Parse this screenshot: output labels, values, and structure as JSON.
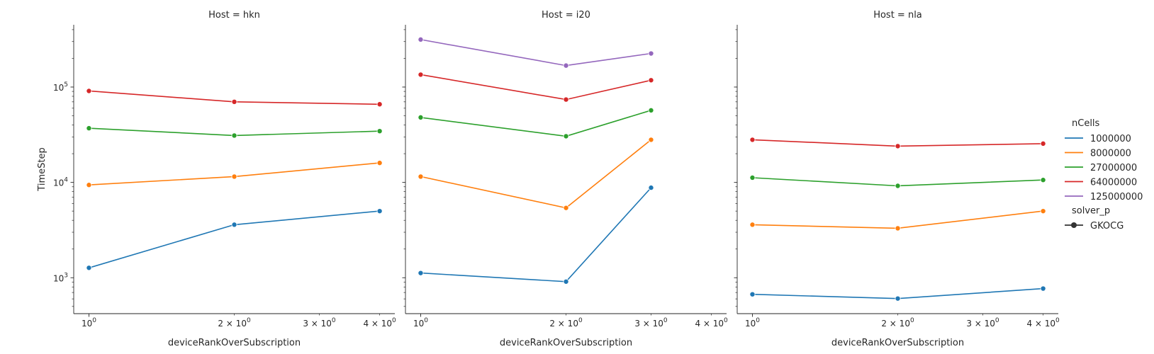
{
  "chart_data": {
    "type": "line",
    "ylabel": "TimeStep",
    "xlabel": "deviceRankOverSubscription",
    "xscale": "log",
    "yscale": "log",
    "xlim": [
      0.93,
      4.3
    ],
    "ylim": [
      420,
      450000
    ],
    "x_ticks": [
      {
        "value": 1,
        "base": "10",
        "exp": "0"
      },
      {
        "value": 2,
        "base": "2 × 10",
        "exp": "0"
      },
      {
        "value": 3,
        "base": "3 × 10",
        "exp": "0"
      },
      {
        "value": 4,
        "base": "4 × 10",
        "exp": "0"
      }
    ],
    "y_ticks": [
      {
        "value": 1000,
        "base": "10",
        "exp": "3"
      },
      {
        "value": 10000,
        "base": "10",
        "exp": "4"
      },
      {
        "value": 100000,
        "base": "10",
        "exp": "5"
      }
    ],
    "legend": {
      "placement": "right",
      "hue_title": "nCells",
      "style_title": "solver_p",
      "style_entries": [
        "GKOCG"
      ]
    },
    "colors": {
      "1000000": "#1f77b4",
      "8000000": "#ff7f0e",
      "27000000": "#2ca02c",
      "64000000": "#d62728",
      "125000000": "#9467bd"
    },
    "series_names": [
      "1000000",
      "8000000",
      "27000000",
      "64000000",
      "125000000"
    ],
    "panels": [
      {
        "title": "Host = hkn",
        "series": [
          {
            "name": "1000000",
            "x": [
              1,
              2,
              4
            ],
            "y": [
              1270,
              3600,
              5000
            ]
          },
          {
            "name": "8000000",
            "x": [
              1,
              2,
              4
            ],
            "y": [
              9400,
              11500,
              16000
            ]
          },
          {
            "name": "27000000",
            "x": [
              1,
              2,
              4
            ],
            "y": [
              37000,
              31000,
              34500
            ]
          },
          {
            "name": "64000000",
            "x": [
              1,
              2,
              4
            ],
            "y": [
              91000,
              70000,
              66000
            ]
          }
        ]
      },
      {
        "title": "Host = i20",
        "series": [
          {
            "name": "1000000",
            "x": [
              1,
              2,
              3
            ],
            "y": [
              1120,
              910,
              8800
            ]
          },
          {
            "name": "8000000",
            "x": [
              1,
              2,
              3
            ],
            "y": [
              11500,
              5400,
              28000
            ]
          },
          {
            "name": "27000000",
            "x": [
              1,
              2,
              3
            ],
            "y": [
              48000,
              30500,
              57000
            ]
          },
          {
            "name": "64000000",
            "x": [
              1,
              2,
              3
            ],
            "y": [
              135000,
              74000,
              118000
            ]
          },
          {
            "name": "125000000",
            "x": [
              1,
              2,
              3
            ],
            "y": [
              315000,
              168000,
              225000
            ]
          }
        ]
      },
      {
        "title": "Host = nla",
        "series": [
          {
            "name": "1000000",
            "x": [
              1,
              2,
              4
            ],
            "y": [
              670,
              605,
              770
            ]
          },
          {
            "name": "8000000",
            "x": [
              1,
              2,
              4
            ],
            "y": [
              3600,
              3300,
              5000
            ]
          },
          {
            "name": "27000000",
            "x": [
              1,
              2,
              4
            ],
            "y": [
              11200,
              9200,
              10600
            ]
          },
          {
            "name": "64000000",
            "x": [
              1,
              2,
              4
            ],
            "y": [
              28000,
              24000,
              25500
            ]
          }
        ]
      }
    ]
  }
}
